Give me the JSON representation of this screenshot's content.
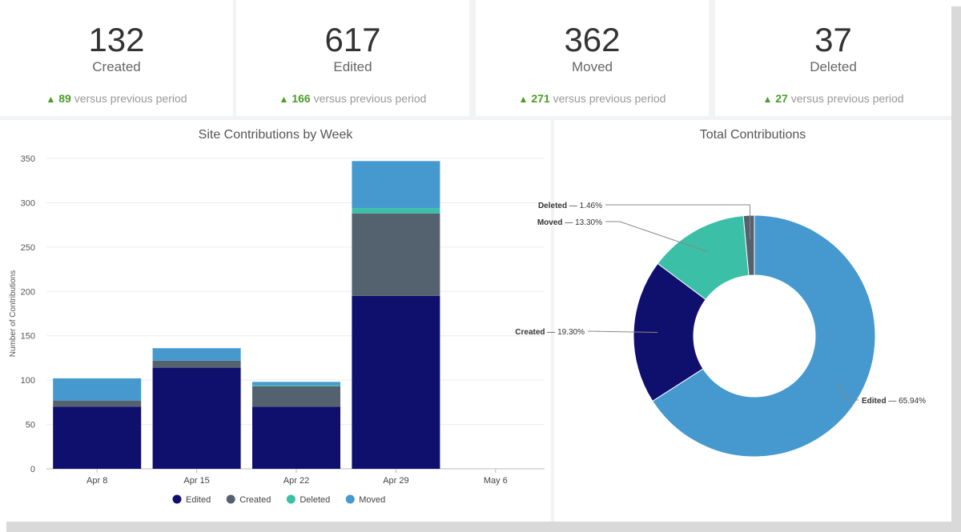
{
  "kpis": [
    {
      "value": "132",
      "label": "Created",
      "delta": "89",
      "delta_text": "versus previous period"
    },
    {
      "value": "617",
      "label": "Edited",
      "delta": "166",
      "delta_text": "versus previous period"
    },
    {
      "value": "362",
      "label": "Moved",
      "delta": "271",
      "delta_text": "versus previous period"
    },
    {
      "value": "37",
      "label": "Deleted",
      "delta": "27",
      "delta_text": "versus previous period"
    }
  ],
  "colors": {
    "edited": "#0f0f6e",
    "created": "#546270",
    "deleted": "#3cbfa7",
    "moved": "#4599cf",
    "positive": "#4a9d27"
  },
  "chart_data": [
    {
      "type": "bar",
      "stacked": true,
      "title": "Site Contributions by Week",
      "xlabel": "",
      "ylabel": "Number of Contributions",
      "ylim": [
        0,
        350
      ],
      "yticks": [
        0,
        50,
        100,
        150,
        200,
        250,
        300,
        350
      ],
      "grid": true,
      "legend_position": "bottom",
      "categories": [
        "Apr 8",
        "Apr 15",
        "Apr 22",
        "Apr 29",
        "May 6"
      ],
      "series": [
        {
          "name": "Edited",
          "color": "#0f0f6e",
          "values": [
            70,
            114,
            70,
            195,
            0
          ]
        },
        {
          "name": "Created",
          "color": "#546270",
          "values": [
            7,
            8,
            23,
            93,
            0
          ]
        },
        {
          "name": "Deleted",
          "color": "#3cbfa7",
          "values": [
            0,
            0,
            1,
            6,
            0
          ]
        },
        {
          "name": "Moved",
          "color": "#4599cf",
          "values": [
            25,
            14,
            4,
            53,
            0
          ]
        }
      ]
    },
    {
      "type": "pie",
      "donut": true,
      "title": "Total Contributions",
      "slices": [
        {
          "name": "Edited",
          "label": "Edited — 65.94%",
          "value": 65.94,
          "color": "#4599cf"
        },
        {
          "name": "Created",
          "label": "Created — 19.30%",
          "value": 19.3,
          "color": "#0f0f6e"
        },
        {
          "name": "Moved",
          "label": "Moved — 13.30%",
          "value": 13.3,
          "color": "#3cbfa7"
        },
        {
          "name": "Deleted",
          "label": "Deleted — 1.46%",
          "value": 1.46,
          "color": "#546270"
        }
      ]
    }
  ]
}
